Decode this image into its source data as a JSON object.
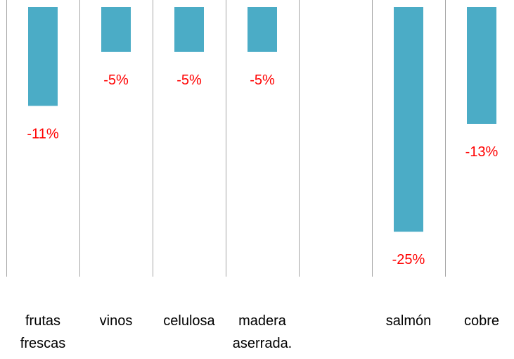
{
  "chart_data": {
    "type": "bar",
    "categories": [
      "frutas frescas",
      "vinos",
      "celulosa",
      "madera aserrada.",
      null,
      "salmón",
      "cobre"
    ],
    "values": [
      -11,
      -5,
      -5,
      -5,
      null,
      -25,
      -13
    ],
    "value_labels": [
      "-11%",
      "-5%",
      "-5%",
      "-5%",
      null,
      "-25%",
      "-13%"
    ],
    "color": "#4bacc6",
    "label_color": "#ff0000",
    "ylim": [
      -30,
      0
    ]
  }
}
